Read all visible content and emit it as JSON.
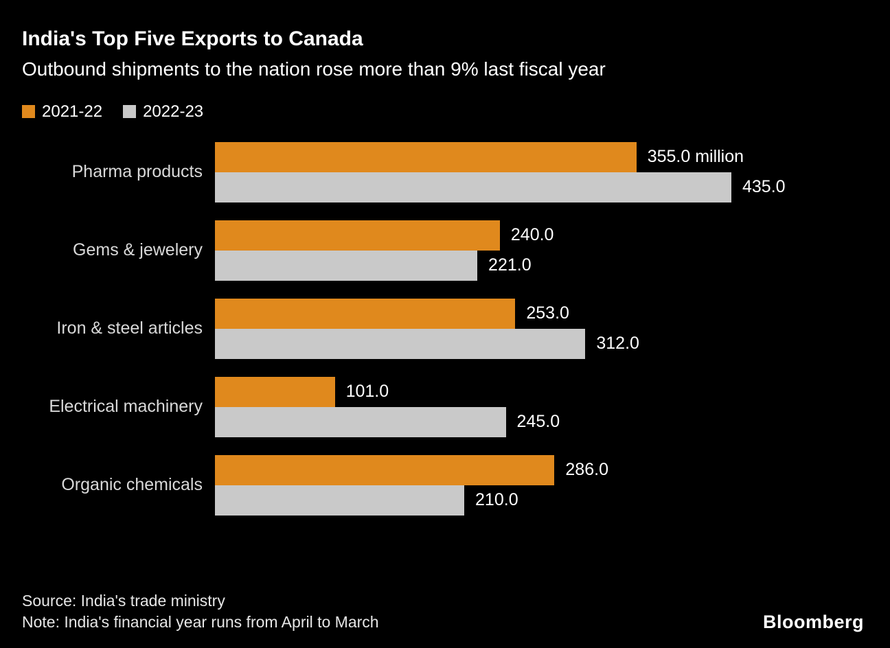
{
  "header": {
    "title": "India's Top Five Exports to Canada",
    "subtitle": "Outbound shipments to the nation rose more than 9% last fiscal year"
  },
  "chart_data": {
    "type": "bar",
    "orientation": "horizontal",
    "title": "India's Top Five Exports to Canada",
    "subtitle": "Outbound shipments to the nation rose more than 9% last fiscal year",
    "categories": [
      "Pharma products",
      "Gems & jewelery",
      "Iron & steel articles",
      "Electrical machinery",
      "Organic chemicals"
    ],
    "series": [
      {
        "name": "2021-22",
        "color": "#E0891D",
        "values": [
          355.0,
          240.0,
          253.0,
          101.0,
          286.0
        ],
        "labels": [
          "355.0 million",
          "240.0",
          "253.0",
          "101.0",
          "286.0"
        ]
      },
      {
        "name": "2022-23",
        "color": "#C9C9C9",
        "values": [
          435.0,
          221.0,
          312.0,
          245.0,
          210.0
        ],
        "labels": [
          "435.0",
          "221.0",
          "312.0",
          "245.0",
          "210.0"
        ]
      }
    ],
    "xlim": [
      0,
      435
    ],
    "grid": false,
    "legend_position": "top"
  },
  "footer": {
    "source": "Source: India's trade ministry",
    "note": "Note: India's financial year runs from April to March",
    "logo": "Bloomberg"
  }
}
